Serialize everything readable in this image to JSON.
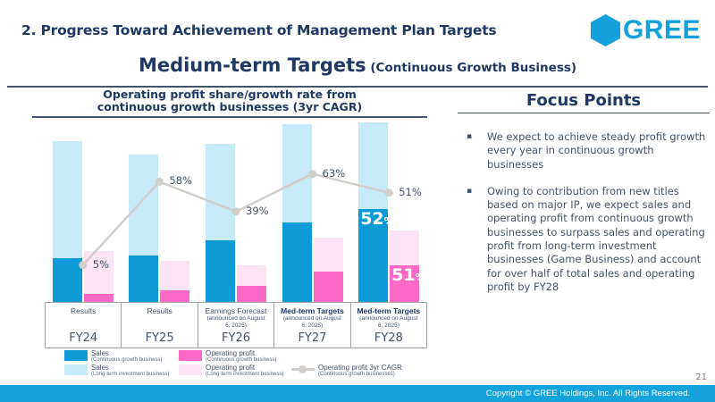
{
  "header": {
    "title": "2. Progress Toward Achievement of Management Plan Targets",
    "logo_text": "GREE"
  },
  "subtitle": {
    "main": "Medium-term Targets",
    "qualifier": " (Continuous Growth Business)"
  },
  "chart_panel": {
    "title_line1": "Operating profit share/growth rate from",
    "title_line2": "continuous growth businesses (3yr CAGR)"
  },
  "focus": {
    "title": "Focus Points",
    "bullets": [
      "We expect to achieve steady profit growth every year in continuous growth businesses",
      "Owing to contribution from new titles based on major IP, we expect sales and operating profit from continuous growth businesses to surpass sales and operating profit from long-term investment businesses (Game Business) and account for over half of total sales and operating profit by FY28"
    ]
  },
  "footer": {
    "copyright": "Copyright © GREE Holdings, Inc. All Rights Reserved.",
    "page_number": "21"
  },
  "colors": {
    "sales_continuous": "#0D9BD8",
    "sales_longterm": "#C7EAF9",
    "op_continuous": "#FA69C5",
    "op_longterm": "#FCE4F4",
    "cagr_line": "#D2CFCB",
    "title_navy": "#1F3864",
    "body_text": "#44546A",
    "brand_cyan": "#14A3DC"
  },
  "chart_data": {
    "type": "bar",
    "stacked": true,
    "value_axis_shown": false,
    "units": "relative height (no axis labels shown)",
    "legend_position": "bottom",
    "categories": [
      "FY24",
      "FY25",
      "FY26",
      "FY27",
      "FY28"
    ],
    "category_labels": [
      {
        "status": "Results",
        "note": "",
        "bold": false
      },
      {
        "status": "Results",
        "note": "",
        "bold": false
      },
      {
        "status": "Earnings Forecast",
        "note": "(announced on August 6, 2025)",
        "bold": false
      },
      {
        "status": "Med-term Targets",
        "note": "(announced on August 6, 2025)",
        "bold": true
      },
      {
        "status": "Med-term Targets",
        "note": "(announced on August 6, 2025)",
        "bold": true
      }
    ],
    "series": [
      {
        "key": "sales_continuous",
        "name": "Sales",
        "sub": "(Continuous growth business)",
        "values": [
          49,
          52,
          69,
          89,
          104
        ]
      },
      {
        "key": "sales_longterm",
        "name": "Sales",
        "sub": "(Long-term investment business)",
        "values": [
          131,
          113,
          108,
          110,
          97
        ]
      },
      {
        "key": "op_continuous",
        "name": "Operating profit",
        "sub": "(Continuous growth business)",
        "values": [
          9,
          13,
          18,
          34,
          41
        ]
      },
      {
        "key": "op_longterm",
        "name": "Operating profit",
        "sub": "(Long-term investment business)",
        "values": [
          48,
          33,
          23,
          38,
          39
        ]
      }
    ],
    "line_series": {
      "name": "Operating profit 3yr CAGR",
      "sub": "(Continuous growth businesses)",
      "values_percent": [
        5,
        58,
        39,
        63,
        51
      ],
      "labels": [
        "5%",
        "58%",
        "39%",
        "63%",
        "51%"
      ]
    },
    "bar_value_labels": [
      {
        "category_index": 4,
        "stack": "sales",
        "value": "52",
        "suffix": "%"
      },
      {
        "category_index": 4,
        "stack": "op",
        "value": "51",
        "suffix": "%"
      }
    ],
    "legend": [
      {
        "type": "swatch",
        "color_key": "sales_continuous",
        "label": "Sales",
        "sub": "(Continuous growth business)"
      },
      {
        "type": "swatch",
        "color_key": "sales_longterm",
        "label": "Sales",
        "sub": "(Long-term investment business)"
      },
      {
        "type": "swatch",
        "color_key": "op_continuous",
        "label": "Operating profit",
        "sub": "(Continuous growth business)"
      },
      {
        "type": "swatch",
        "color_key": "op_longterm",
        "label": "Operating profit",
        "sub": "(Long-term investment business)"
      },
      {
        "type": "line",
        "color_key": "cagr_line",
        "label": "Operating profit 3yr CAGR",
        "sub": "(Continuous growth businesses)"
      }
    ]
  }
}
